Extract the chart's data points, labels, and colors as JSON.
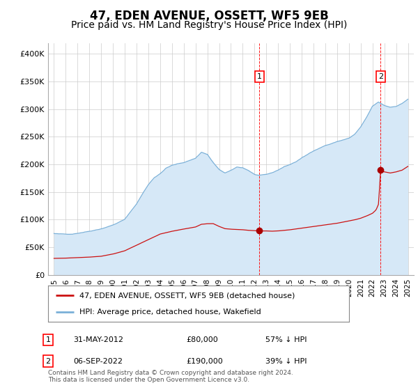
{
  "title": "47, EDEN AVENUE, OSSETT, WF5 9EB",
  "subtitle": "Price paid vs. HM Land Registry's House Price Index (HPI)",
  "title_fontsize": 12,
  "subtitle_fontsize": 10,
  "hpi_color": "#7ab0d8",
  "hpi_fill_color": "#d6e8f7",
  "price_color": "#cc1111",
  "price_dot_color": "#aa0000",
  "background_color": "#ffffff",
  "grid_color": "#cccccc",
  "ylim": [
    0,
    420000
  ],
  "yticks": [
    0,
    50000,
    100000,
    150000,
    200000,
    250000,
    300000,
    350000,
    400000
  ],
  "ytick_labels": [
    "£0",
    "£50K",
    "£100K",
    "£150K",
    "£200K",
    "£250K",
    "£300K",
    "£350K",
    "£400K"
  ],
  "x_start_year": 1995,
  "x_end_year": 2025,
  "marker1_x": 2012.42,
  "marker1_y_price": 80000,
  "marker1_y_hpi": 181000,
  "marker1_label": "1",
  "marker1_date": "31-MAY-2012",
  "marker1_price": "£80,000",
  "marker1_pct": "57% ↓ HPI",
  "marker2_x": 2022.68,
  "marker2_y_price": 190000,
  "marker2_y_hpi": 310000,
  "marker2_label": "2",
  "marker2_date": "06-SEP-2022",
  "marker2_price": "£190,000",
  "marker2_pct": "39% ↓ HPI",
  "legend_label_price": "47, EDEN AVENUE, OSSETT, WF5 9EB (detached house)",
  "legend_label_hpi": "HPI: Average price, detached house, Wakefield",
  "footer": "Contains HM Land Registry data © Crown copyright and database right 2024.\nThis data is licensed under the Open Government Licence v3.0.",
  "xtick_years": [
    1995,
    1996,
    1997,
    1998,
    1999,
    2000,
    2001,
    2002,
    2003,
    2004,
    2005,
    2006,
    2007,
    2008,
    2009,
    2010,
    2011,
    2012,
    2013,
    2014,
    2015,
    2016,
    2017,
    2018,
    2019,
    2020,
    2021,
    2022,
    2023,
    2024,
    2025
  ]
}
